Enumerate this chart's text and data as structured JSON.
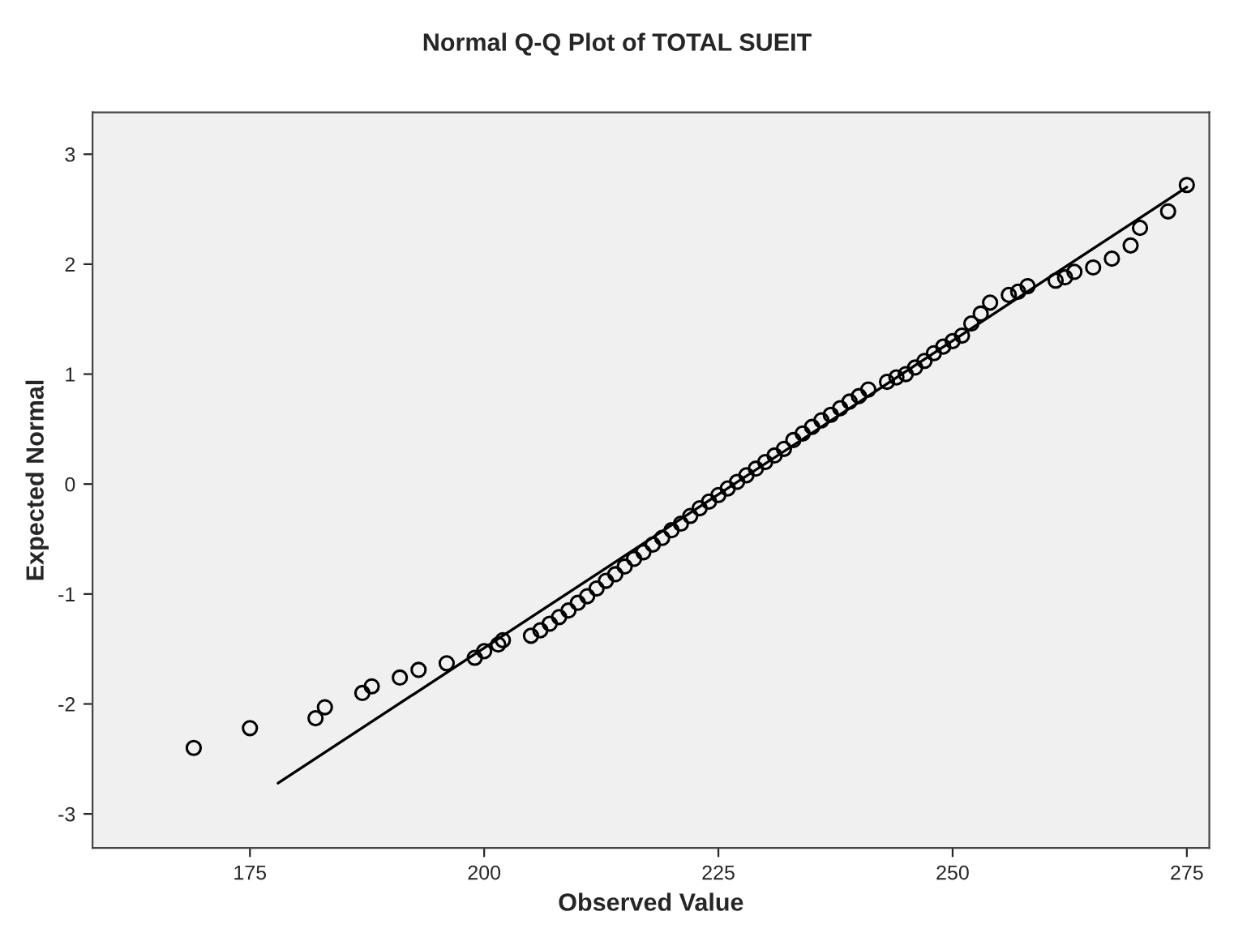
{
  "chart_data": {
    "type": "scatter",
    "title": "Normal Q-Q Plot of TOTAL SUEIT",
    "xlabel": "Observed Value",
    "ylabel": "Expected Normal",
    "xlim": [
      158.2,
      277.4
    ],
    "ylim": [
      -3.31,
      3.38
    ],
    "xticks": [
      175,
      200,
      225,
      250,
      275
    ],
    "yticks": [
      -3,
      -2,
      -1,
      0,
      1,
      2,
      3
    ],
    "grid": false,
    "marker": "circle",
    "series": [
      {
        "color": "#000000",
        "x": [
          169,
          175,
          182,
          183,
          187,
          188,
          191,
          193,
          196,
          199,
          200,
          201.5,
          202,
          205,
          206,
          207,
          208,
          209,
          210,
          211,
          212,
          213,
          214,
          215,
          216,
          217,
          218,
          219,
          220,
          221,
          222,
          223,
          224,
          225,
          226,
          227,
          228,
          229,
          230,
          231,
          232,
          233,
          234,
          235,
          236,
          237,
          238,
          239,
          240,
          241,
          243,
          244,
          245,
          246,
          247,
          248,
          249,
          250,
          251,
          252,
          253,
          254,
          256,
          257,
          258,
          261,
          262,
          263,
          265,
          267,
          269,
          270,
          273,
          275
        ],
        "values": [
          -2.4,
          -2.22,
          -2.13,
          -2.03,
          -1.9,
          -1.84,
          -1.76,
          -1.69,
          -1.63,
          -1.58,
          -1.52,
          -1.46,
          -1.42,
          -1.38,
          -1.33,
          -1.27,
          -1.21,
          -1.15,
          -1.08,
          -1.02,
          -0.95,
          -0.88,
          -0.82,
          -0.75,
          -0.68,
          -0.62,
          -0.55,
          -0.49,
          -0.42,
          -0.36,
          -0.29,
          -0.22,
          -0.16,
          -0.1,
          -0.04,
          0.02,
          0.08,
          0.14,
          0.2,
          0.26,
          0.32,
          0.4,
          0.46,
          0.52,
          0.58,
          0.63,
          0.69,
          0.75,
          0.8,
          0.86,
          0.93,
          0.97,
          1.0,
          1.06,
          1.12,
          1.19,
          1.25,
          1.3,
          1.35,
          1.46,
          1.55,
          1.65,
          1.72,
          1.75,
          1.8,
          1.85,
          1.88,
          1.93,
          1.97,
          2.05,
          2.17,
          2.33,
          2.48,
          2.72
        ]
      },
      {
        "type": "line",
        "color": "#000000",
        "marker": "none",
        "x": [
          178,
          275
        ],
        "values": [
          -2.72,
          2.7
        ]
      }
    ]
  }
}
